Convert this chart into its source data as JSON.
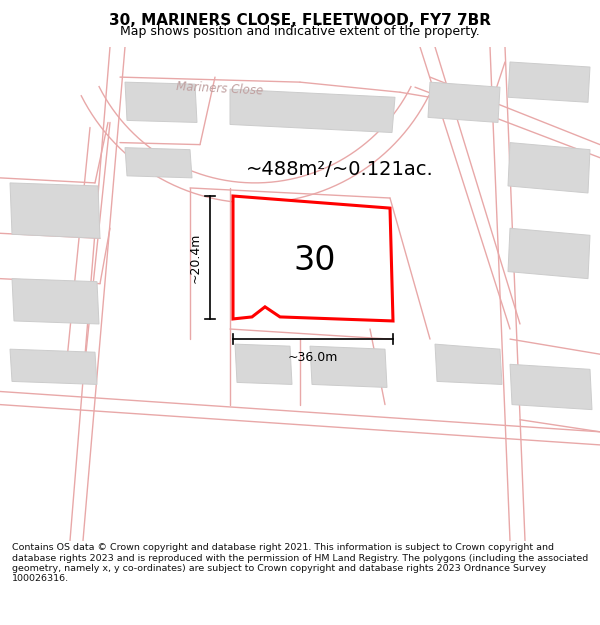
{
  "title": "30, MARINERS CLOSE, FLEETWOOD, FY7 7BR",
  "subtitle": "Map shows position and indicative extent of the property.",
  "footer": "Contains OS data © Crown copyright and database right 2021. This information is subject to Crown copyright and database rights 2023 and is reproduced with the permission of HM Land Registry. The polygons (including the associated geometry, namely x, y co-ordinates) are subject to Crown copyright and database rights 2023 Ordnance Survey 100026316.",
  "area_label": "~488m²/~0.121ac.",
  "width_label": "~36.0m",
  "height_label": "~20.4m",
  "number_label": "30",
  "map_bg": "#f7f5f5",
  "road_line_color": "#e8a8a8",
  "building_fill": "#d8d8d8",
  "building_edge": "#cccccc",
  "highlight_fill": "#ffffff",
  "highlight_stroke": "#ff0000",
  "road_label_color": "#c0a0a0",
  "title_color": "#000000",
  "footer_color": "#111111",
  "dim_color": "#111111",
  "title_fontsize": 11,
  "subtitle_fontsize": 9,
  "footer_fontsize": 6.8
}
